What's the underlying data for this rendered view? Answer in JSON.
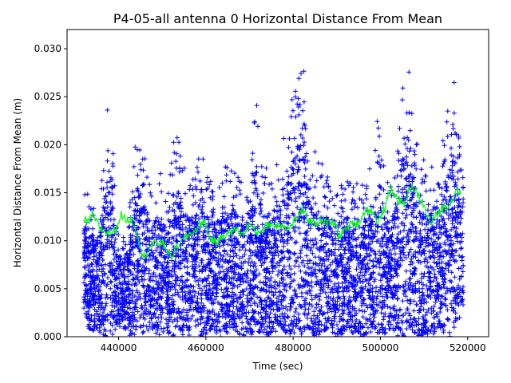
{
  "chart_data": {
    "type": "scatter",
    "title": "P4-05-all antenna 0 Horizontal Distance From Mean",
    "xlabel": "Time (sec)",
    "ylabel": "Horizontal Distance From Mean (m)",
    "xlim": [
      428200,
      524800
    ],
    "ylim": [
      0.0,
      0.032
    ],
    "xticks": [
      440000,
      460000,
      480000,
      500000,
      520000
    ],
    "xtick_labels": [
      "440000",
      "460000",
      "480000",
      "500000",
      "520000"
    ],
    "yticks": [
      0.0,
      0.005,
      0.01,
      0.015,
      0.02,
      0.025,
      0.03
    ],
    "ytick_labels": [
      "0.000",
      "0.005",
      "0.010",
      "0.015",
      "0.020",
      "0.025",
      "0.030"
    ],
    "grid": false,
    "series": [
      {
        "name": "horizontal distance",
        "style": "plus-markers",
        "color": "#0000ff",
        "x_range": [
          432000,
          519000
        ],
        "envelope_x": [
          432000,
          433000,
          434000,
          435000,
          436000,
          437000,
          437800,
          438500,
          439500,
          441000,
          442500,
          443500,
          444500,
          446000,
          447500,
          449000,
          450500,
          451500,
          452500,
          453500,
          454500,
          456000,
          457500,
          459000,
          460000,
          461500,
          463000,
          464500,
          466000,
          467500,
          469000,
          470500,
          471500,
          472500,
          474000,
          475500,
          477000,
          478500,
          480000,
          481000,
          482000,
          482500,
          483500,
          485000,
          486500,
          488000,
          489500,
          491000,
          492500,
          494000,
          495500,
          497000,
          498500,
          499500,
          501000,
          502500,
          504000,
          505500,
          506500,
          507500,
          509000,
          510500,
          512000,
          513500,
          515000,
          516500,
          517500,
          519000
        ],
        "envelope_max": [
          0.015,
          0.016,
          0.014,
          0.013,
          0.016,
          0.023,
          0.025,
          0.022,
          0.012,
          0.011,
          0.013,
          0.02,
          0.0215,
          0.019,
          0.016,
          0.018,
          0.016,
          0.015,
          0.0215,
          0.021,
          0.019,
          0.0175,
          0.0165,
          0.0215,
          0.018,
          0.016,
          0.017,
          0.018,
          0.0185,
          0.0175,
          0.016,
          0.0185,
          0.0255,
          0.02,
          0.0175,
          0.019,
          0.019,
          0.022,
          0.026,
          0.027,
          0.032,
          0.0285,
          0.0215,
          0.0195,
          0.019,
          0.0165,
          0.016,
          0.017,
          0.017,
          0.0165,
          0.016,
          0.018,
          0.017,
          0.0255,
          0.017,
          0.016,
          0.0215,
          0.028,
          0.029,
          0.023,
          0.021,
          0.0175,
          0.0185,
          0.02,
          0.0225,
          0.0265,
          0.0265,
          0.016
        ],
        "envelope_min": [
          0.003,
          0.001,
          0.0,
          0.001,
          0.0,
          0.0,
          0.0,
          0.0,
          0.001,
          0.001,
          0.0,
          0.0,
          0.001,
          0.0,
          0.001,
          0.0,
          0.0,
          0.0,
          0.0,
          0.001,
          0.0,
          0.0,
          0.001,
          0.0,
          0.0,
          0.001,
          0.0,
          0.0,
          0.001,
          0.0,
          0.0,
          0.0,
          0.001,
          0.0,
          0.0,
          0.0,
          0.001,
          0.0,
          0.0,
          0.001,
          0.0,
          0.0,
          0.001,
          0.0,
          0.0,
          0.001,
          0.0,
          0.0,
          0.001,
          0.0,
          0.0,
          0.0,
          0.001,
          0.0,
          0.0,
          0.001,
          0.0,
          0.0,
          0.001,
          0.0,
          0.0,
          0.0,
          0.0,
          0.001,
          0.0,
          0.0,
          0.001,
          0.003
        ]
      },
      {
        "name": "running mean",
        "style": "line",
        "color": "#00ff00",
        "x": [
          432000,
          433000,
          434000,
          435500,
          436500,
          438000,
          439500,
          440500,
          441500,
          443000,
          444500,
          445500,
          447000,
          448500,
          450000,
          451000,
          452000,
          453500,
          455000,
          456500,
          458000,
          459500,
          461000,
          462500,
          464000,
          465500,
          467000,
          468500,
          470000,
          471500,
          473000,
          474500,
          476000,
          477500,
          479000,
          480500,
          482000,
          483500,
          485000,
          486500,
          488000,
          489500,
          490500,
          492000,
          493500,
          495000,
          496500,
          498000,
          499500,
          501000,
          502500,
          504000,
          505500,
          507000,
          508500,
          510000,
          511500,
          513000,
          514500,
          516000,
          517500,
          518500
        ],
        "y": [
          0.0122,
          0.0118,
          0.0128,
          0.0115,
          0.011,
          0.0108,
          0.0112,
          0.0128,
          0.0122,
          0.0122,
          0.0105,
          0.0082,
          0.0092,
          0.0098,
          0.0098,
          0.0092,
          0.0082,
          0.0095,
          0.0102,
          0.0108,
          0.0112,
          0.0122,
          0.0102,
          0.0098,
          0.0106,
          0.0108,
          0.0112,
          0.0106,
          0.0118,
          0.0108,
          0.0112,
          0.0118,
          0.0115,
          0.0118,
          0.0112,
          0.0122,
          0.0132,
          0.0122,
          0.0118,
          0.0122,
          0.0118,
          0.0118,
          0.0105,
          0.0112,
          0.0118,
          0.0118,
          0.0132,
          0.0132,
          0.0118,
          0.0135,
          0.0155,
          0.0142,
          0.0138,
          0.0158,
          0.0148,
          0.0135,
          0.0118,
          0.0128,
          0.0135,
          0.0138,
          0.0155,
          0.0148
        ]
      }
    ]
  }
}
